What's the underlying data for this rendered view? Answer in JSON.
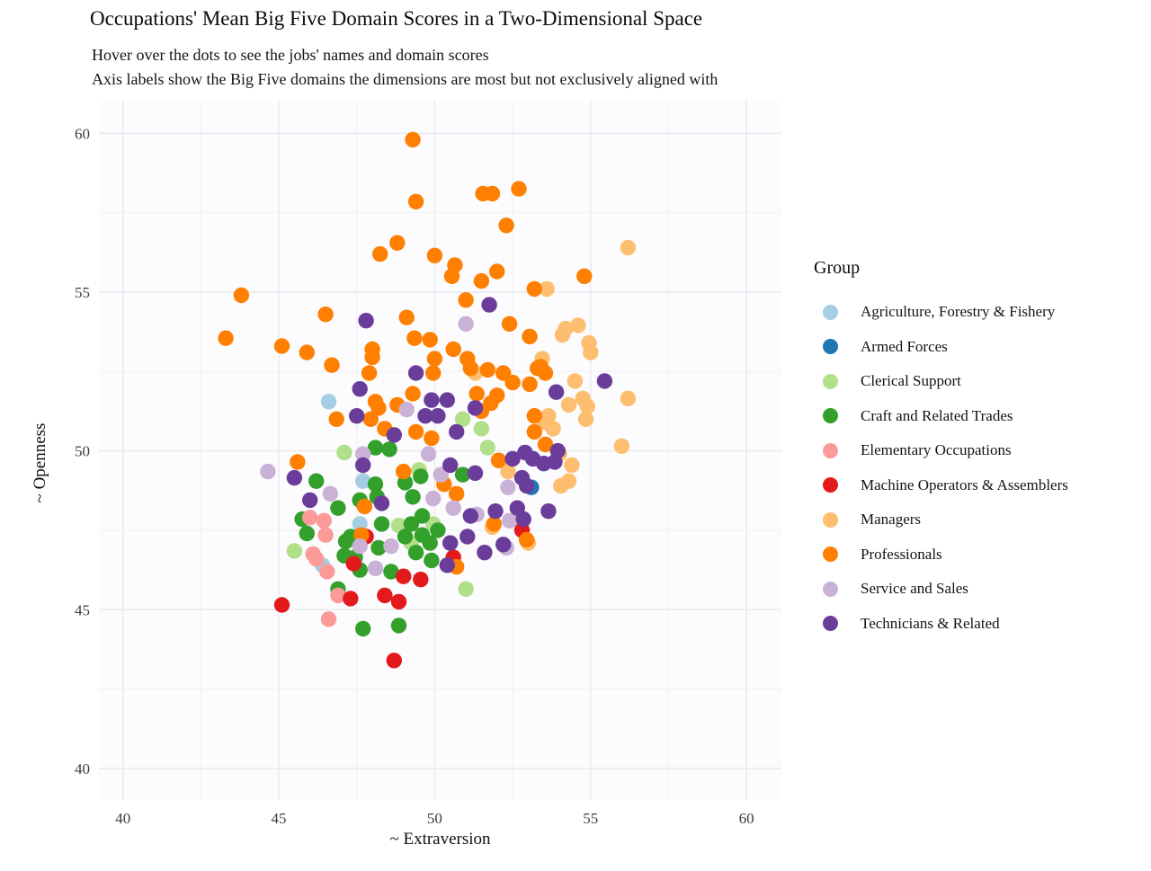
{
  "chart_data": {
    "type": "scatter",
    "title": "Occupations' Mean Big Five Domain Scores in a Two-Dimensional Space",
    "subtitle_lines": [
      "Hover over the dots to see the jobs' names and domain scores",
      "Axis labels show the Big Five domains the dimensions are most but not exclusively aligned with"
    ],
    "xlabel": "~ Extraversion",
    "ylabel": "~ Openness",
    "xlim": [
      39.2,
      61.1
    ],
    "ylim": [
      39.0,
      61.0
    ],
    "xticks": [
      40,
      45,
      50,
      55,
      60
    ],
    "yticks": [
      40,
      45,
      50,
      55,
      60
    ],
    "xticks_minor": [
      42.5,
      47.5,
      52.5,
      57.5
    ],
    "yticks_minor": [
      42.5,
      47.5,
      52.5,
      57.5
    ],
    "grid": true,
    "legend_title": "Group",
    "legend_position": "right",
    "panel_color": "#fcfbfd",
    "grid_major_color": "#e7e6ec",
    "grid_minor_color": "#f1f0f4",
    "series": [
      {
        "name": "Agriculture, Forestry & Fishery",
        "color": "#a6cee3",
        "points": [
          [
            46.6,
            51.55
          ],
          [
            47.7,
            49.05
          ],
          [
            47.6,
            47.7
          ],
          [
            46.4,
            46.4
          ]
        ]
      },
      {
        "name": "Armed Forces",
        "color": "#1f78b4",
        "points": [
          [
            53.1,
            48.85
          ]
        ]
      },
      {
        "name": "Clerical Support",
        "color": "#b2df8a",
        "points": [
          [
            47.1,
            49.95
          ],
          [
            49.5,
            49.4
          ],
          [
            50.9,
            51.0
          ],
          [
            51.5,
            50.7
          ],
          [
            51.7,
            50.1
          ],
          [
            49.95,
            47.7
          ],
          [
            48.85,
            47.65
          ],
          [
            49.25,
            47.1
          ],
          [
            45.5,
            46.85
          ],
          [
            51.0,
            45.65
          ]
        ]
      },
      {
        "name": "Craft and Related Trades",
        "color": "#33a02c",
        "points": [
          [
            48.1,
            50.1
          ],
          [
            48.55,
            50.05
          ],
          [
            46.2,
            49.05
          ],
          [
            48.1,
            48.95
          ],
          [
            49.05,
            49.0
          ],
          [
            49.55,
            49.2
          ],
          [
            50.9,
            49.25
          ],
          [
            46.9,
            48.2
          ],
          [
            47.6,
            48.45
          ],
          [
            48.15,
            48.55
          ],
          [
            49.3,
            48.55
          ],
          [
            45.75,
            47.85
          ],
          [
            45.9,
            47.4
          ],
          [
            47.3,
            47.3
          ],
          [
            47.15,
            47.15
          ],
          [
            48.3,
            47.7
          ],
          [
            49.6,
            47.95
          ],
          [
            49.25,
            47.7
          ],
          [
            50.1,
            47.5
          ],
          [
            49.6,
            47.35
          ],
          [
            49.85,
            47.1
          ],
          [
            49.05,
            47.3
          ],
          [
            48.2,
            46.95
          ],
          [
            47.1,
            46.7
          ],
          [
            47.45,
            46.65
          ],
          [
            47.6,
            46.25
          ],
          [
            48.6,
            46.2
          ],
          [
            49.4,
            46.8
          ],
          [
            49.9,
            46.55
          ],
          [
            46.9,
            45.65
          ],
          [
            47.7,
            44.4
          ],
          [
            48.85,
            44.5
          ]
        ]
      },
      {
        "name": "Elementary Occupations",
        "color": "#fb9a99",
        "points": [
          [
            46.0,
            47.9
          ],
          [
            46.45,
            47.8
          ],
          [
            46.5,
            47.35
          ],
          [
            46.1,
            46.75
          ],
          [
            46.2,
            46.6
          ],
          [
            46.55,
            46.2
          ],
          [
            46.9,
            45.45
          ],
          [
            46.6,
            44.7
          ]
        ]
      },
      {
        "name": "Machine Operators & Assemblers",
        "color": "#e31a1c",
        "points": [
          [
            47.8,
            47.3
          ],
          [
            50.6,
            46.65
          ],
          [
            52.8,
            47.5
          ],
          [
            47.4,
            46.45
          ],
          [
            49.0,
            46.05
          ],
          [
            49.55,
            45.95
          ],
          [
            45.1,
            45.15
          ],
          [
            47.3,
            45.35
          ],
          [
            48.4,
            45.45
          ],
          [
            48.85,
            45.25
          ],
          [
            48.7,
            43.4
          ]
        ]
      },
      {
        "name": "Managers",
        "color": "#fdbf6f",
        "points": [
          [
            56.2,
            56.4
          ],
          [
            53.6,
            55.1
          ],
          [
            54.2,
            53.85
          ],
          [
            54.6,
            53.95
          ],
          [
            54.1,
            53.65
          ],
          [
            54.95,
            53.4
          ],
          [
            55.0,
            53.1
          ],
          [
            53.45,
            52.9
          ],
          [
            51.3,
            52.45
          ],
          [
            54.5,
            52.2
          ],
          [
            54.75,
            51.65
          ],
          [
            54.3,
            51.45
          ],
          [
            54.9,
            51.4
          ],
          [
            54.85,
            51.0
          ],
          [
            56.2,
            51.65
          ],
          [
            53.65,
            51.1
          ],
          [
            53.8,
            50.7
          ],
          [
            53.55,
            50.9
          ],
          [
            54.0,
            49.9
          ],
          [
            54.4,
            49.55
          ],
          [
            56.0,
            50.15
          ],
          [
            54.05,
            48.9
          ],
          [
            54.3,
            49.05
          ],
          [
            52.35,
            49.35
          ],
          [
            51.85,
            47.6
          ],
          [
            53.0,
            47.1
          ]
        ]
      },
      {
        "name": "Professionals",
        "color": "#ff7f00",
        "points": [
          [
            49.3,
            59.8
          ],
          [
            49.4,
            57.85
          ],
          [
            51.55,
            58.1
          ],
          [
            51.85,
            58.1
          ],
          [
            52.7,
            58.25
          ],
          [
            52.3,
            57.1
          ],
          [
            48.8,
            56.55
          ],
          [
            48.25,
            56.2
          ],
          [
            50.0,
            56.15
          ],
          [
            50.65,
            55.85
          ],
          [
            50.55,
            55.5
          ],
          [
            51.5,
            55.35
          ],
          [
            52.0,
            55.65
          ],
          [
            53.2,
            55.1
          ],
          [
            54.8,
            55.5
          ],
          [
            43.8,
            54.9
          ],
          [
            51.0,
            54.75
          ],
          [
            46.5,
            54.3
          ],
          [
            49.1,
            54.2
          ],
          [
            52.4,
            54.0
          ],
          [
            43.3,
            53.55
          ],
          [
            45.1,
            53.3
          ],
          [
            45.9,
            53.1
          ],
          [
            48.0,
            53.2
          ],
          [
            48.0,
            52.95
          ],
          [
            49.35,
            53.55
          ],
          [
            49.85,
            53.5
          ],
          [
            50.6,
            53.2
          ],
          [
            51.05,
            52.9
          ],
          [
            50.0,
            52.9
          ],
          [
            53.05,
            53.6
          ],
          [
            53.4,
            52.65
          ],
          [
            46.7,
            52.7
          ],
          [
            47.9,
            52.45
          ],
          [
            49.95,
            52.45
          ],
          [
            51.15,
            52.6
          ],
          [
            51.7,
            52.55
          ],
          [
            52.2,
            52.45
          ],
          [
            52.5,
            52.15
          ],
          [
            53.05,
            52.1
          ],
          [
            53.3,
            52.6
          ],
          [
            53.55,
            52.45
          ],
          [
            52.0,
            51.75
          ],
          [
            49.3,
            51.8
          ],
          [
            48.1,
            51.55
          ],
          [
            48.2,
            51.35
          ],
          [
            48.8,
            51.45
          ],
          [
            46.85,
            51.0
          ],
          [
            47.95,
            51.0
          ],
          [
            48.4,
            50.7
          ],
          [
            51.35,
            51.8
          ],
          [
            51.5,
            51.25
          ],
          [
            51.8,
            51.5
          ],
          [
            53.2,
            51.1
          ],
          [
            53.2,
            50.6
          ],
          [
            49.4,
            50.6
          ],
          [
            49.9,
            50.4
          ],
          [
            45.6,
            49.65
          ],
          [
            53.55,
            50.2
          ],
          [
            49.0,
            49.35
          ],
          [
            50.3,
            48.95
          ],
          [
            50.7,
            48.65
          ],
          [
            52.05,
            49.7
          ],
          [
            51.9,
            47.7
          ],
          [
            47.75,
            48.25
          ],
          [
            47.65,
            47.35
          ],
          [
            50.7,
            46.35
          ],
          [
            52.95,
            47.2
          ]
        ]
      },
      {
        "name": "Service and Sales",
        "color": "#cab2d6",
        "points": [
          [
            44.65,
            49.35
          ],
          [
            51.0,
            54.0
          ],
          [
            49.1,
            51.3
          ],
          [
            47.7,
            49.9
          ],
          [
            49.8,
            49.9
          ],
          [
            50.2,
            49.25
          ],
          [
            46.65,
            48.65
          ],
          [
            49.95,
            48.5
          ],
          [
            50.6,
            48.2
          ],
          [
            51.35,
            48.0
          ],
          [
            52.35,
            48.85
          ],
          [
            52.4,
            47.8
          ],
          [
            47.6,
            47.0
          ],
          [
            48.6,
            47.0
          ],
          [
            48.1,
            46.3
          ],
          [
            52.3,
            46.95
          ]
        ]
      },
      {
        "name": "Technicians & Related",
        "color": "#6a3d9a",
        "points": [
          [
            47.8,
            54.1
          ],
          [
            51.75,
            54.6
          ],
          [
            47.6,
            51.95
          ],
          [
            49.4,
            52.45
          ],
          [
            55.45,
            52.2
          ],
          [
            53.9,
            51.85
          ],
          [
            49.9,
            51.6
          ],
          [
            50.4,
            51.6
          ],
          [
            51.3,
            51.35
          ],
          [
            49.7,
            51.1
          ],
          [
            50.1,
            51.1
          ],
          [
            47.5,
            51.1
          ],
          [
            48.7,
            50.5
          ],
          [
            50.7,
            50.6
          ],
          [
            52.9,
            49.95
          ],
          [
            53.15,
            49.75
          ],
          [
            52.5,
            49.75
          ],
          [
            53.5,
            49.6
          ],
          [
            53.85,
            49.65
          ],
          [
            53.95,
            50.0
          ],
          [
            47.7,
            49.55
          ],
          [
            45.5,
            49.15
          ],
          [
            50.5,
            49.55
          ],
          [
            51.3,
            49.3
          ],
          [
            46.0,
            48.45
          ],
          [
            48.3,
            48.35
          ],
          [
            52.8,
            49.15
          ],
          [
            52.95,
            48.9
          ],
          [
            51.15,
            47.95
          ],
          [
            51.95,
            48.1
          ],
          [
            52.65,
            48.2
          ],
          [
            53.65,
            48.1
          ],
          [
            52.85,
            47.85
          ],
          [
            51.05,
            47.3
          ],
          [
            50.5,
            47.1
          ],
          [
            51.6,
            46.8
          ],
          [
            50.4,
            46.4
          ],
          [
            52.2,
            47.05
          ]
        ]
      }
    ]
  }
}
